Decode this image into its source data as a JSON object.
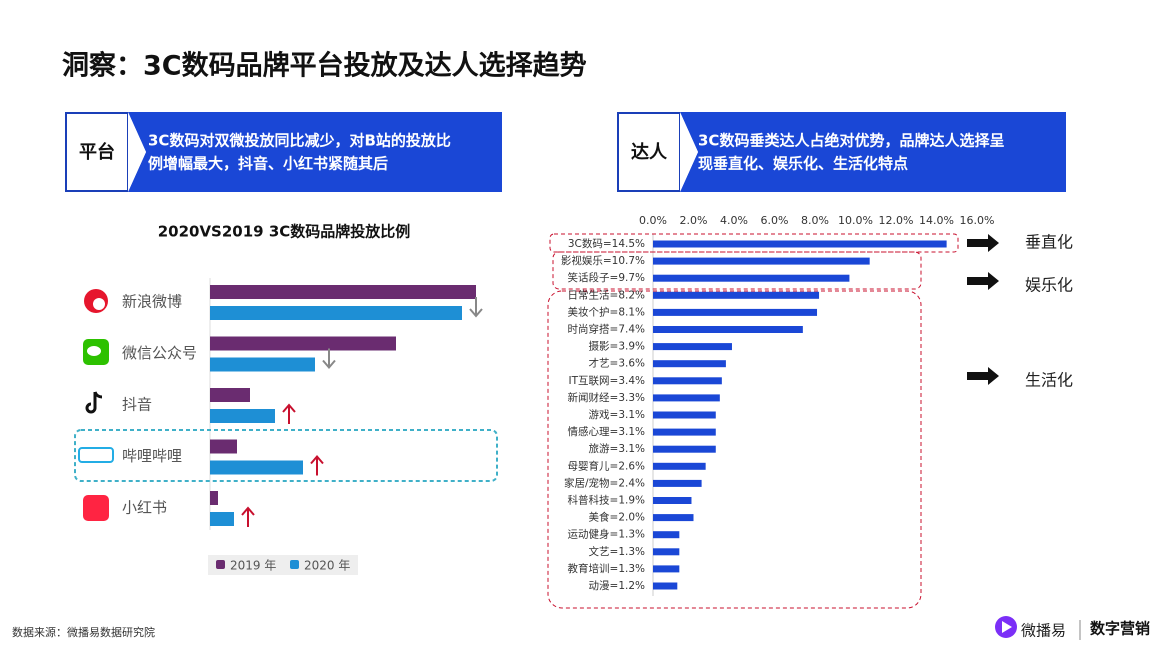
{
  "header": {
    "title": "洞察：3C数码品牌平台投放及达人选择趋势"
  },
  "panels": [
    {
      "label": "平台",
      "text": [
        "3C数码对双微投放同比减少，对B站的投放比",
        "例增幅最大，抖音、小红书紧随其后"
      ]
    },
    {
      "label": "达人",
      "text": [
        "3C数码垂类达人占绝对优势，品牌达人选择呈",
        "现垂直化、娱乐化、生活化特点"
      ]
    }
  ],
  "chart_data": [
    {
      "type": "bar",
      "orientation": "horizontal",
      "title": "2020VS2019 3C数码品牌投放比例",
      "categories": [
        "新浪微博",
        "微信公众号",
        "抖音",
        "哔哩哔哩",
        "小红书"
      ],
      "series": [
        {
          "name": "2019 年",
          "color": "#6a2c70",
          "values": [
            26.6,
            18.6,
            4.0,
            2.7,
            0.8
          ]
        },
        {
          "name": "2020 年",
          "color": "#1e8fd5",
          "values": [
            25.2,
            10.5,
            6.5,
            9.3,
            2.4
          ]
        }
      ],
      "trend": [
        "down",
        "down",
        "up",
        "up",
        "up"
      ],
      "xlim": [
        0,
        30
      ],
      "legend": "bottom"
    },
    {
      "type": "bar",
      "orientation": "horizontal",
      "categories": [
        "3C数码=14.5%",
        "影视娱乐=10.7%",
        "笑话段子=9.7%",
        "日常生活=8.2%",
        "美妆个护=8.1%",
        "时尚穿搭=7.4%",
        "摄影=3.9%",
        "才艺=3.6%",
        "IT互联网=3.4%",
        "新闻财经=3.3%",
        "游戏=3.1%",
        "情感心理=3.1%",
        "旅游=3.1%",
        "母婴育儿=2.6%",
        "家居/宠物=2.4%",
        "科普科技=1.9%",
        "美食=2.0%",
        "运动健身=1.3%",
        "文艺=1.3%",
        "教育培训=1.3%",
        "动漫=1.2%"
      ],
      "values": [
        14.5,
        10.7,
        9.7,
        8.2,
        8.1,
        7.4,
        3.9,
        3.6,
        3.4,
        3.3,
        3.1,
        3.1,
        3.1,
        2.6,
        2.4,
        1.9,
        2.0,
        1.3,
        1.3,
        1.3,
        1.2
      ],
      "color": "#1a47d6",
      "xlim": [
        0,
        16
      ],
      "xticks": [
        {
          "value": 0,
          "label": "0.0%"
        },
        {
          "value": 2,
          "label": "2.0%"
        },
        {
          "value": 4,
          "label": "4.0%"
        },
        {
          "value": 6,
          "label": "6.0%"
        },
        {
          "value": 8,
          "label": "8.0%"
        },
        {
          "value": 10,
          "label": "10.0%"
        },
        {
          "value": 12,
          "label": "12.0%"
        },
        {
          "value": 14,
          "label": "14.0%"
        },
        {
          "value": 16,
          "label": "16.0%"
        }
      ]
    }
  ],
  "annotations": [
    "垂直化",
    "娱乐化",
    "生活化"
  ],
  "footer": {
    "source": "数据来源：微播易数据研究院",
    "logo": "微播易",
    "brand": "数字营销"
  }
}
